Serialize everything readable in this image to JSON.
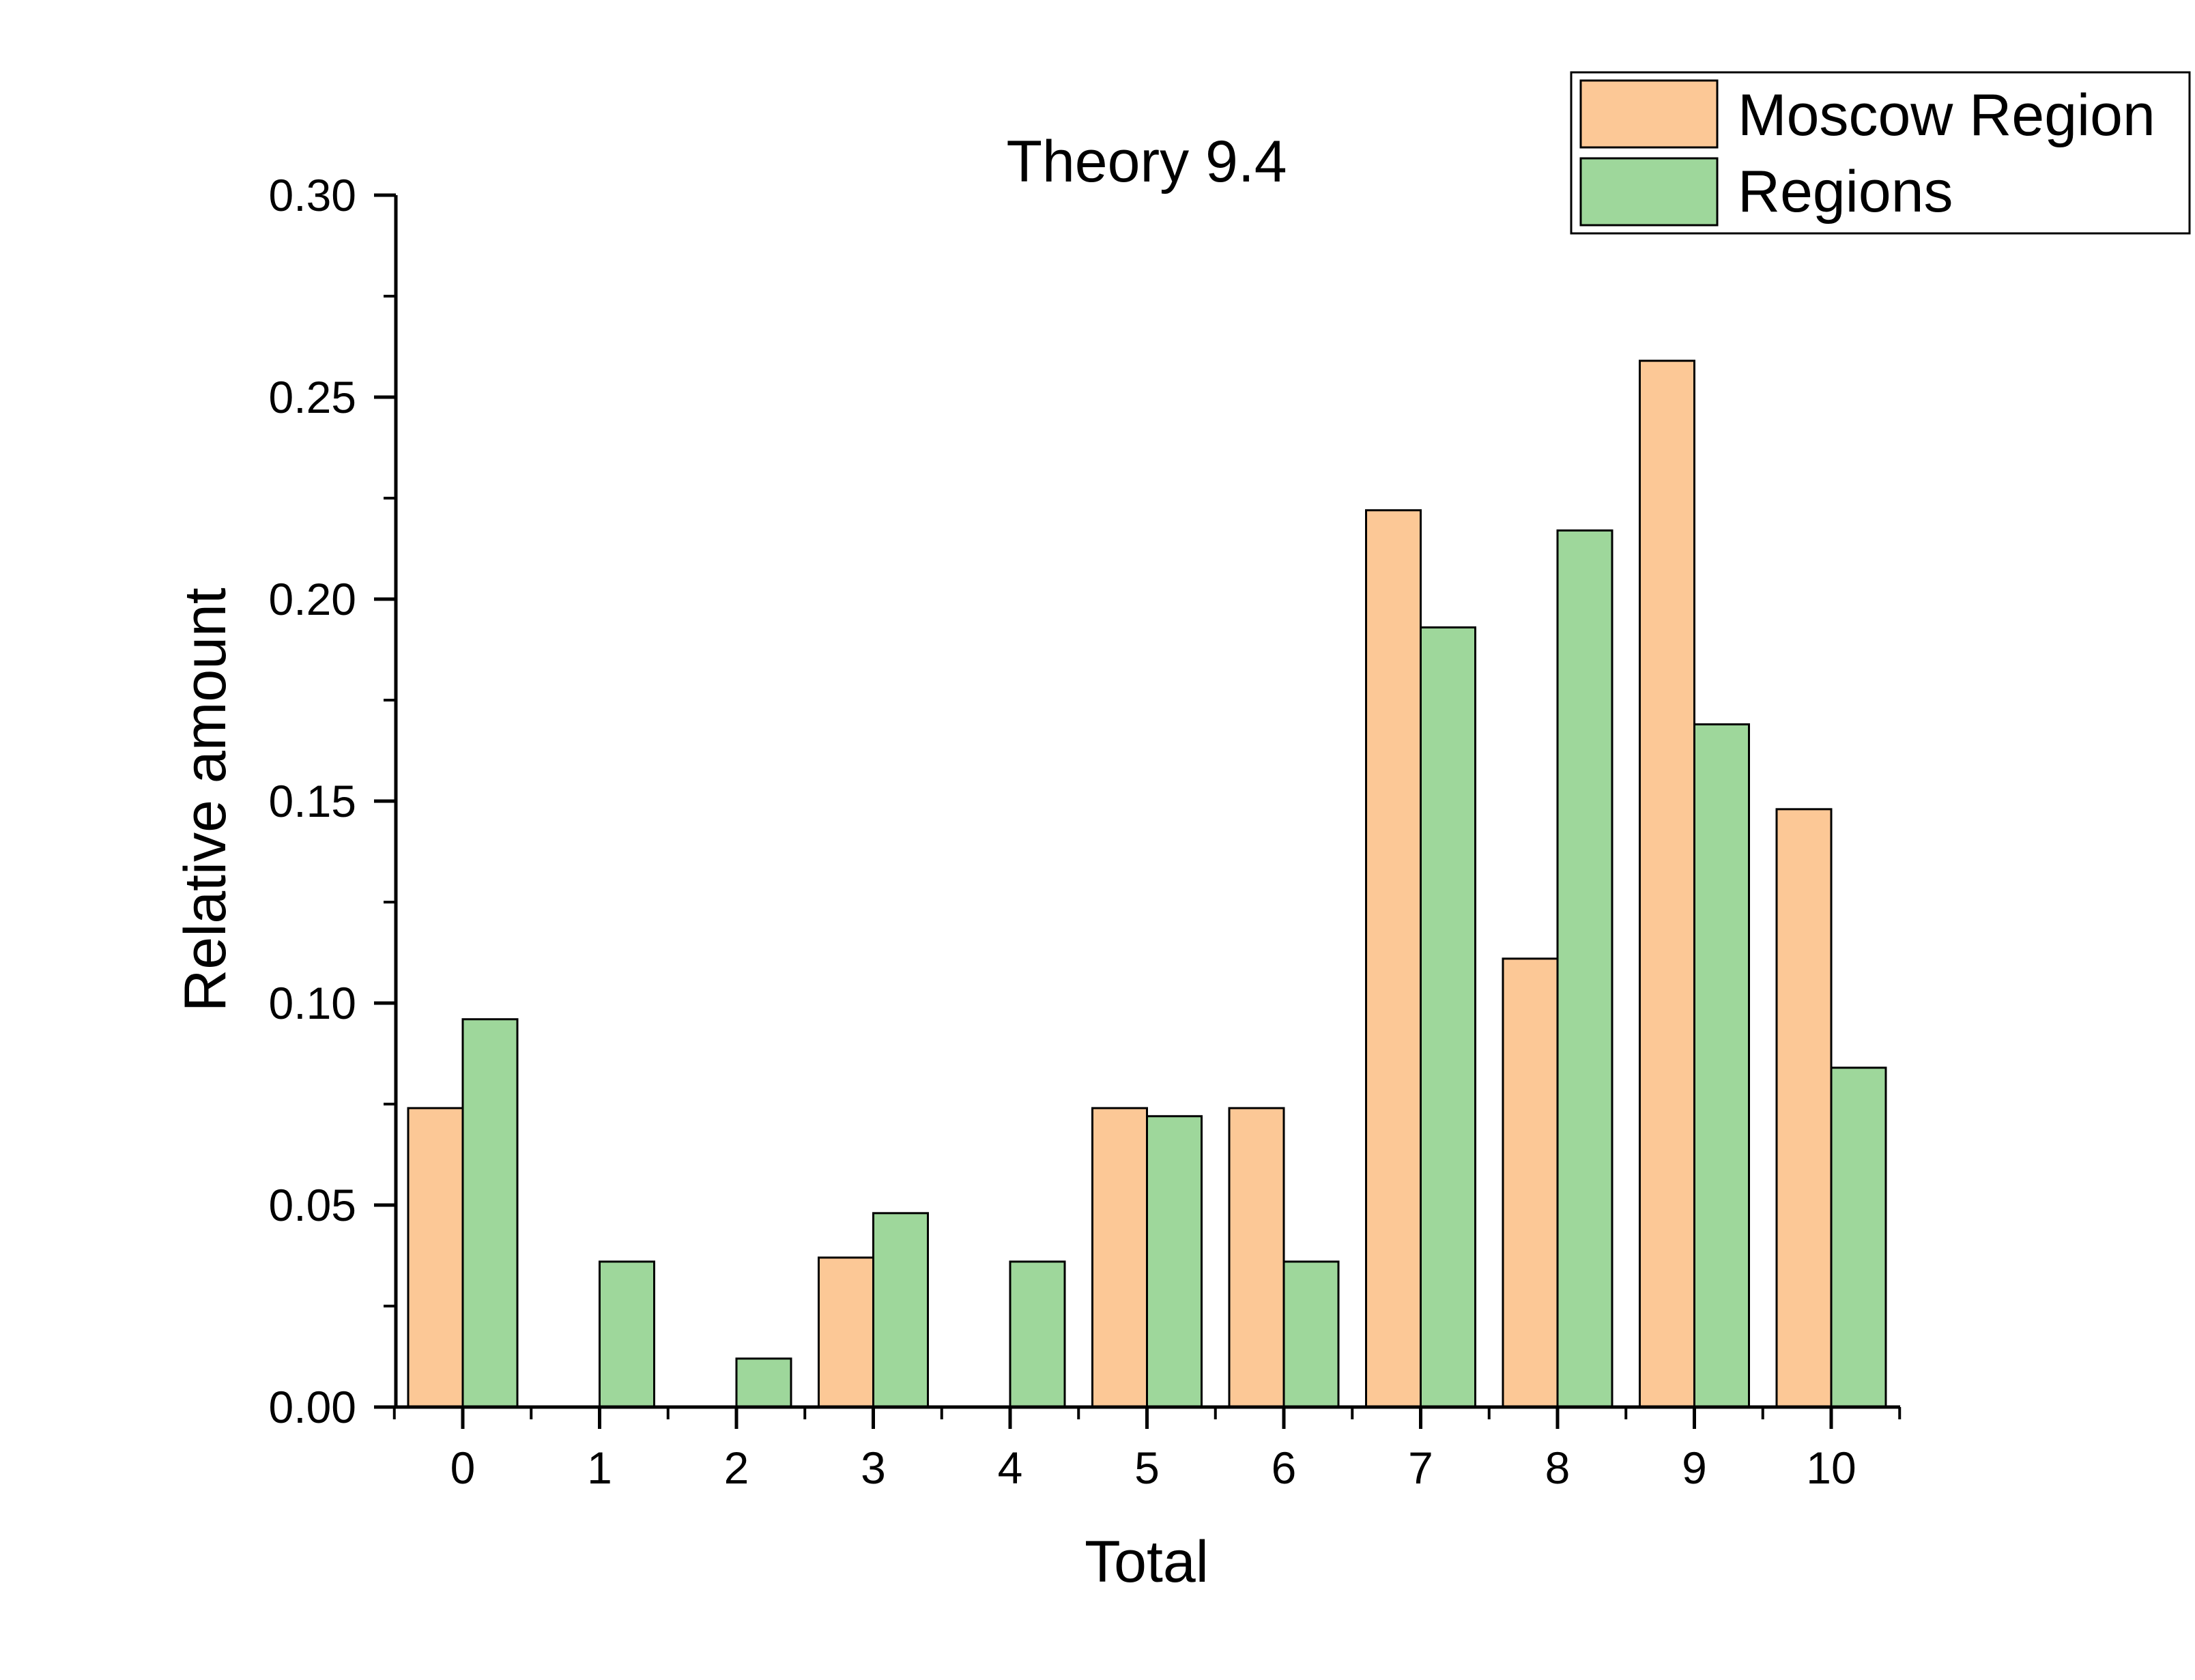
{
  "chart_data": {
    "type": "bar",
    "title": "Theory 9.4",
    "xlabel": "Total",
    "ylabel": "Relative amount",
    "categories": [
      "0",
      "1",
      "2",
      "3",
      "4",
      "5",
      "6",
      "7",
      "8",
      "9",
      "10"
    ],
    "series": [
      {
        "name": "Moscow Region",
        "color": "#FCC896",
        "values": [
          0.074,
          0.0,
          0.0,
          0.037,
          0.0,
          0.074,
          0.074,
          0.222,
          0.111,
          0.259,
          0.148
        ]
      },
      {
        "name": "Regions",
        "color": "#9ED79B",
        "values": [
          0.096,
          0.036,
          0.012,
          0.048,
          0.036,
          0.072,
          0.036,
          0.193,
          0.217,
          0.169,
          0.084
        ]
      }
    ],
    "ylim": [
      0,
      0.3
    ],
    "yticks": [
      "0.00",
      "0.05",
      "0.10",
      "0.15",
      "0.20",
      "0.25",
      "0.30"
    ],
    "grid": false,
    "legend_position": "top-right"
  }
}
